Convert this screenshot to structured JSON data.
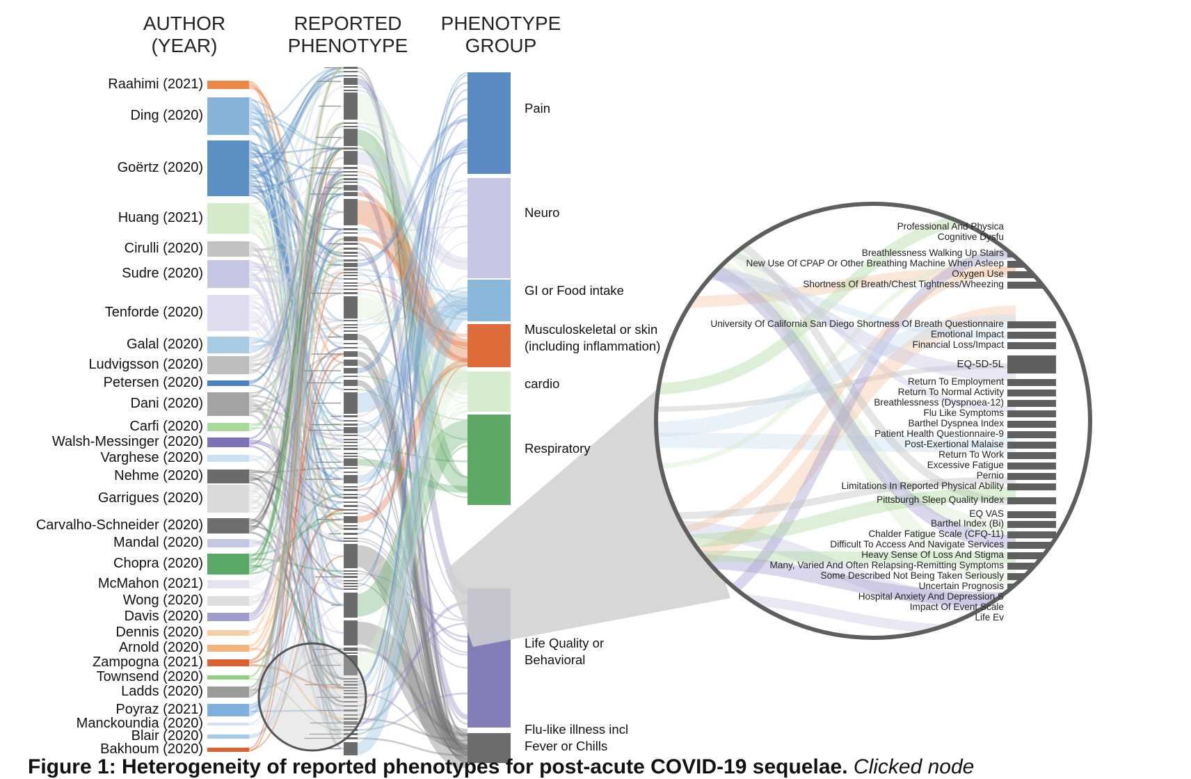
{
  "headers": {
    "author_line1": "AUTHOR",
    "author_line2": "(YEAR)",
    "phenotype_line1": "REPORTED",
    "phenotype_line2": "PHENOTYPE",
    "group_line1": "PHENOTYPE",
    "group_line2": "GROUP"
  },
  "authors": [
    {
      "label": "Raahimi (2021)",
      "color": "#e8894a"
    },
    {
      "label": "Ding (2020)",
      "color": "#86b4d8"
    },
    {
      "label": "Goërtz (2020)",
      "color": "#5b8fc4"
    },
    {
      "label": "Huang (2021)",
      "color": "#d4ebcb"
    },
    {
      "label": "Cirulli (2020)",
      "color": "#c2c2c2"
    },
    {
      "label": "Sudre (2020)",
      "color": "#c5c6e3"
    },
    {
      "label": "Tenforde (2020)",
      "color": "#dedcee"
    },
    {
      "label": "Galal (2020)",
      "color": "#a8cbe3"
    },
    {
      "label": "Ludvigsson (2020)",
      "color": "#bdbdbd"
    },
    {
      "label": "Petersen (2020)",
      "color": "#4a7fc0"
    },
    {
      "label": "Dani (2020)",
      "color": "#a3a3a3"
    },
    {
      "label": "Carfi (2020)",
      "color": "#a9d99c"
    },
    {
      "label": "Walsh-Messinger (2020)",
      "color": "#7c72b8"
    },
    {
      "label": "Varghese (2020)",
      "color": "#cadff0"
    },
    {
      "label": "Nehme (2020)",
      "color": "#6b6b6b"
    },
    {
      "label": "Garrigues (2020)",
      "color": "#dadada"
    },
    {
      "label": "Carvalho-Schneider (2020)",
      "color": "#6e6e6e"
    },
    {
      "label": "Mandal (2020)",
      "color": "#c4c6e2"
    },
    {
      "label": "Chopra (2020)",
      "color": "#5aa866"
    },
    {
      "label": "McMahon (2021)",
      "color": "#e4e3f0"
    },
    {
      "label": "Wong (2020)",
      "color": "#dedede"
    },
    {
      "label": "Davis (2020)",
      "color": "#9f9bcc"
    },
    {
      "label": "Dennis (2020)",
      "color": "#f6cfa8"
    },
    {
      "label": "Arnold (2020)",
      "color": "#f3b47b"
    },
    {
      "label": "Zampogna (2021)",
      "color": "#d9612f"
    },
    {
      "label": "Townsend (2020)",
      "color": "#90cf82"
    },
    {
      "label": "Ladds (2020)",
      "color": "#9b9b9b"
    },
    {
      "label": "Poyraz (2021)",
      "color": "#7fb0dc"
    },
    {
      "label": "Manckoundia (2020)",
      "color": "#cfe0f0"
    },
    {
      "label": "Blair (2020)",
      "color": "#a7cbe6"
    },
    {
      "label": "Bakhoum (2020)",
      "color": "#d9612f"
    }
  ],
  "groups": [
    {
      "line1": "Pain",
      "line2": "",
      "color": "#5b89c4"
    },
    {
      "line1": "Neuro",
      "line2": "",
      "color": "#c6c5e3"
    },
    {
      "line1": "GI or Food intake",
      "line2": "",
      "color": "#89b8da"
    },
    {
      "line1": "Musculoskeletal or skin",
      "line2": "(including inflammation)",
      "color": "#de6c3a"
    },
    {
      "line1": "cardio",
      "line2": "",
      "color": "#d6ecce"
    },
    {
      "line1": "Respiratory",
      "line2": "",
      "color": "#5ea866"
    },
    {
      "line1": "Life Quality or",
      "line2": "Behavioral",
      "color": "#837db8"
    },
    {
      "line1": "Flu-like illness incl",
      "line2": "Fever or Chills",
      "color": "#6c6c6c"
    }
  ],
  "zoom_labels": [
    "Professional And Physica",
    "Cognitive Dysfu",
    "Breathlessness Walking Up Stairs",
    "New Use Of CPAP Or Other Breathing Machine When Asleep",
    "Oxygen Use",
    "Shortness Of Breath/Chest Tightness/Wheezing",
    "University Of California San Diego Shortness Of Breath Questionnaire",
    "Emotional Impact",
    "Financial Loss/Impact",
    "EQ-5D-5L",
    "Return To Employment",
    "Return To Normal Activity",
    "Breathlessness (Dyspnoea-12)",
    "Flu Like Symptoms",
    "Barthel Dyspnea Index",
    "Patient Health Questionnaire-9",
    "Post-Exertional Malaise",
    "Return To Work",
    "Excessive Fatigue",
    "Pernio",
    "Limitations In Reported Physical Ability",
    "Pittsburgh Sleep Quality Index",
    "EQ VAS",
    "Barthel Index (Bi)",
    "Chalder Fatigue Scale (CFQ-11)",
    "Difficult To Access And Navigate Services",
    "Heavy Sense Of Loss And Stigma",
    "Many, Varied And Often Relapsing-Remitting Symptoms",
    "Some Described Not Being Taken Seriously",
    "Uncertain Prognosis",
    "Hospital Anxiety And Depression S",
    "Impact Of Event Scale",
    "Life Ev"
  ],
  "caption": {
    "bold": "Figure 1: Heterogeneity of reported phenotypes for post-acute COVID-19 sequelae.",
    "normal": "Clicked node"
  }
}
